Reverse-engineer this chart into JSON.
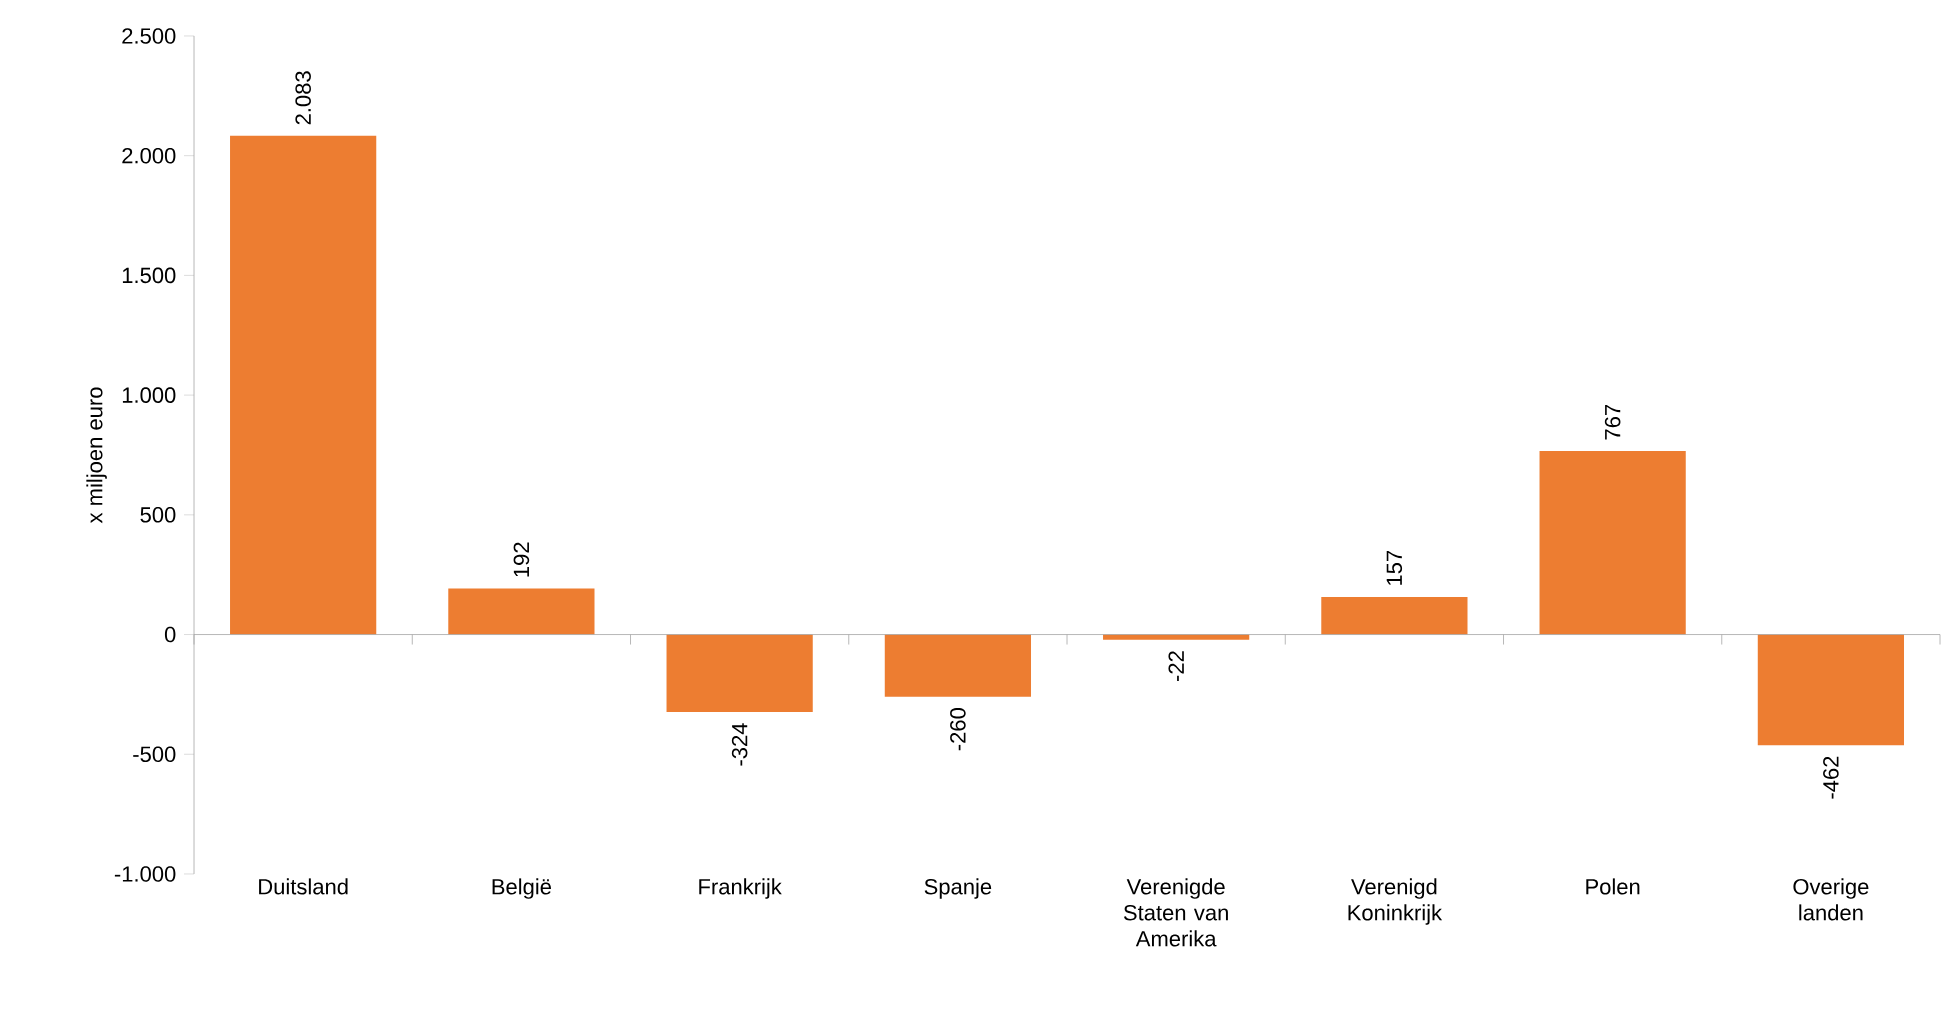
{
  "chart_data": {
    "type": "bar",
    "ylabel": "x miljoen euro",
    "categories": [
      "Duitsland",
      "België",
      "Frankrijk",
      "Spanje",
      "Verenigde Staten van Amerika",
      "Verenigd Koninkrijk",
      "Polen",
      "Overige landen"
    ],
    "values": [
      2083,
      192,
      -324,
      -260,
      -22,
      157,
      767,
      -462
    ],
    "value_labels": [
      "2.083",
      "192",
      "-324",
      "-260",
      "-22",
      "157",
      "767",
      "-462"
    ],
    "color": "#ed7d31",
    "ylim": [
      -1000,
      2500
    ],
    "yticks": [
      {
        "value": -1000,
        "label": "-1.000"
      },
      {
        "value": -500,
        "label": "-500"
      },
      {
        "value": 0,
        "label": "0"
      },
      {
        "value": 500,
        "label": "500"
      },
      {
        "value": 1000,
        "label": "1.000"
      },
      {
        "value": 1500,
        "label": "1.500"
      },
      {
        "value": 2000,
        "label": "2.000"
      },
      {
        "value": 2500,
        "label": "2.500"
      }
    ]
  }
}
